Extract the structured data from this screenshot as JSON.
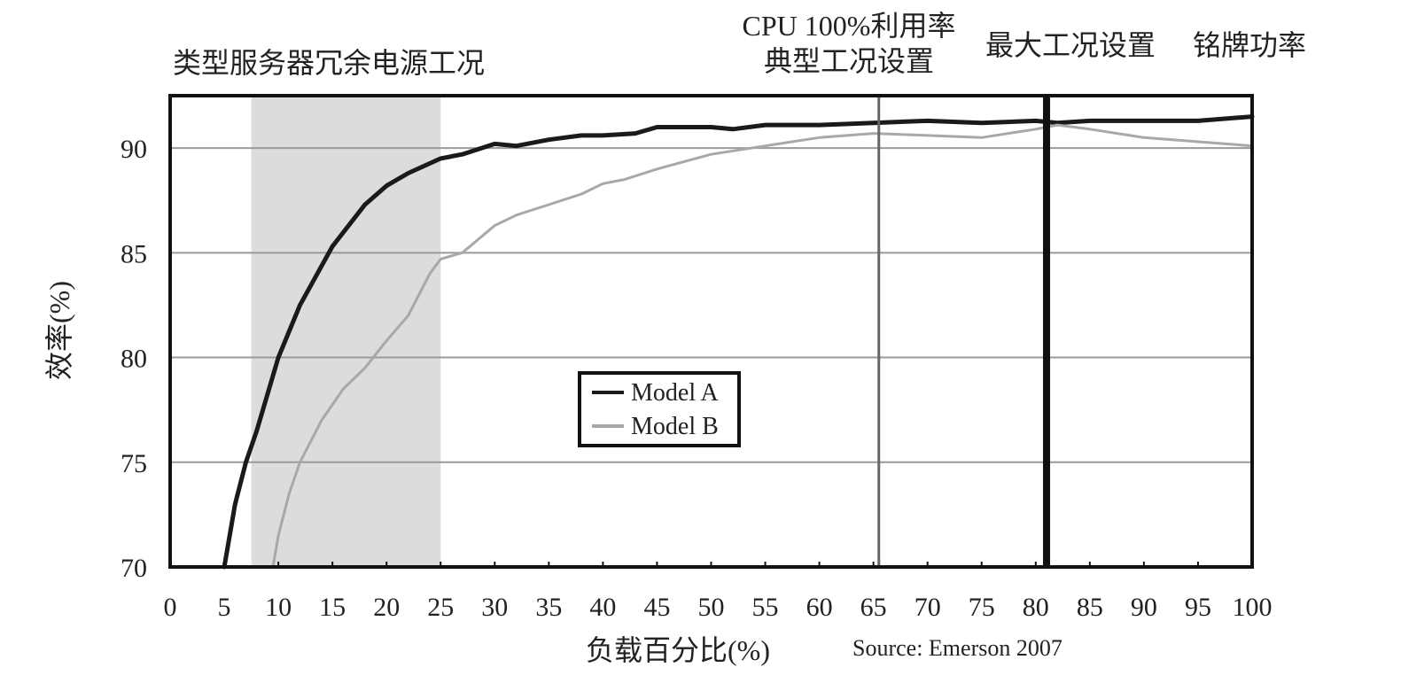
{
  "chart_data": {
    "type": "line",
    "xlabel": "负载百分比(%)",
    "ylabel": "效率(%)",
    "xlim": [
      0,
      100
    ],
    "ylim": [
      70,
      92.5
    ],
    "x_ticks": [
      0,
      5,
      10,
      15,
      20,
      25,
      30,
      35,
      40,
      45,
      50,
      55,
      60,
      65,
      70,
      75,
      80,
      85,
      90,
      95,
      100
    ],
    "y_ticks": [
      70,
      75,
      80,
      85,
      90
    ],
    "grid": "horizontal",
    "legend_position": "center",
    "source": "Source: Emerson 2007",
    "annotations": {
      "typical_range_label": "类型服务器冗余电源工况",
      "cpu_line1": "CPU 100%利用率",
      "cpu_line2": "典型工况设置",
      "max_label": "最大工况设置",
      "nameplate_label": "铭牌功率"
    },
    "shaded_region": {
      "x_start": 7.5,
      "x_end": 25
    },
    "vertical_lines": [
      {
        "x": 65.5,
        "style": "thin"
      },
      {
        "x": 81,
        "style": "thick"
      }
    ],
    "series": [
      {
        "name": "Model A",
        "color": "#1a1a1a",
        "x": [
          5,
          6,
          7,
          8,
          10,
          12,
          15,
          18,
          20,
          22,
          25,
          27,
          30,
          32,
          35,
          38,
          40,
          43,
          45,
          50,
          52,
          55,
          60,
          65,
          70,
          75,
          80,
          82,
          85,
          90,
          95,
          100
        ],
        "y": [
          70,
          73,
          75,
          76.5,
          80,
          82.5,
          85.3,
          87.3,
          88.2,
          88.8,
          89.5,
          89.7,
          90.2,
          90.1,
          90.4,
          90.6,
          90.6,
          90.7,
          91,
          91,
          90.9,
          91.1,
          91.1,
          91.2,
          91.3,
          91.2,
          91.3,
          91.2,
          91.3,
          91.3,
          91.3,
          91.5
        ]
      },
      {
        "name": "Model B",
        "color": "#a8a8a8",
        "x": [
          9.5,
          10,
          11,
          12,
          14,
          16,
          18,
          20,
          22,
          24,
          25,
          27,
          30,
          32,
          35,
          38,
          40,
          42,
          45,
          50,
          55,
          60,
          65,
          70,
          75,
          80,
          82,
          85,
          90,
          95,
          100
        ],
        "y": [
          70,
          71.5,
          73.5,
          75,
          77,
          78.5,
          79.5,
          80.8,
          82,
          84,
          84.7,
          85,
          86.3,
          86.8,
          87.3,
          87.8,
          88.3,
          88.5,
          89,
          89.7,
          90.1,
          90.5,
          90.7,
          90.6,
          90.5,
          90.9,
          91.1,
          90.9,
          90.5,
          90.3,
          90.1
        ]
      }
    ]
  }
}
